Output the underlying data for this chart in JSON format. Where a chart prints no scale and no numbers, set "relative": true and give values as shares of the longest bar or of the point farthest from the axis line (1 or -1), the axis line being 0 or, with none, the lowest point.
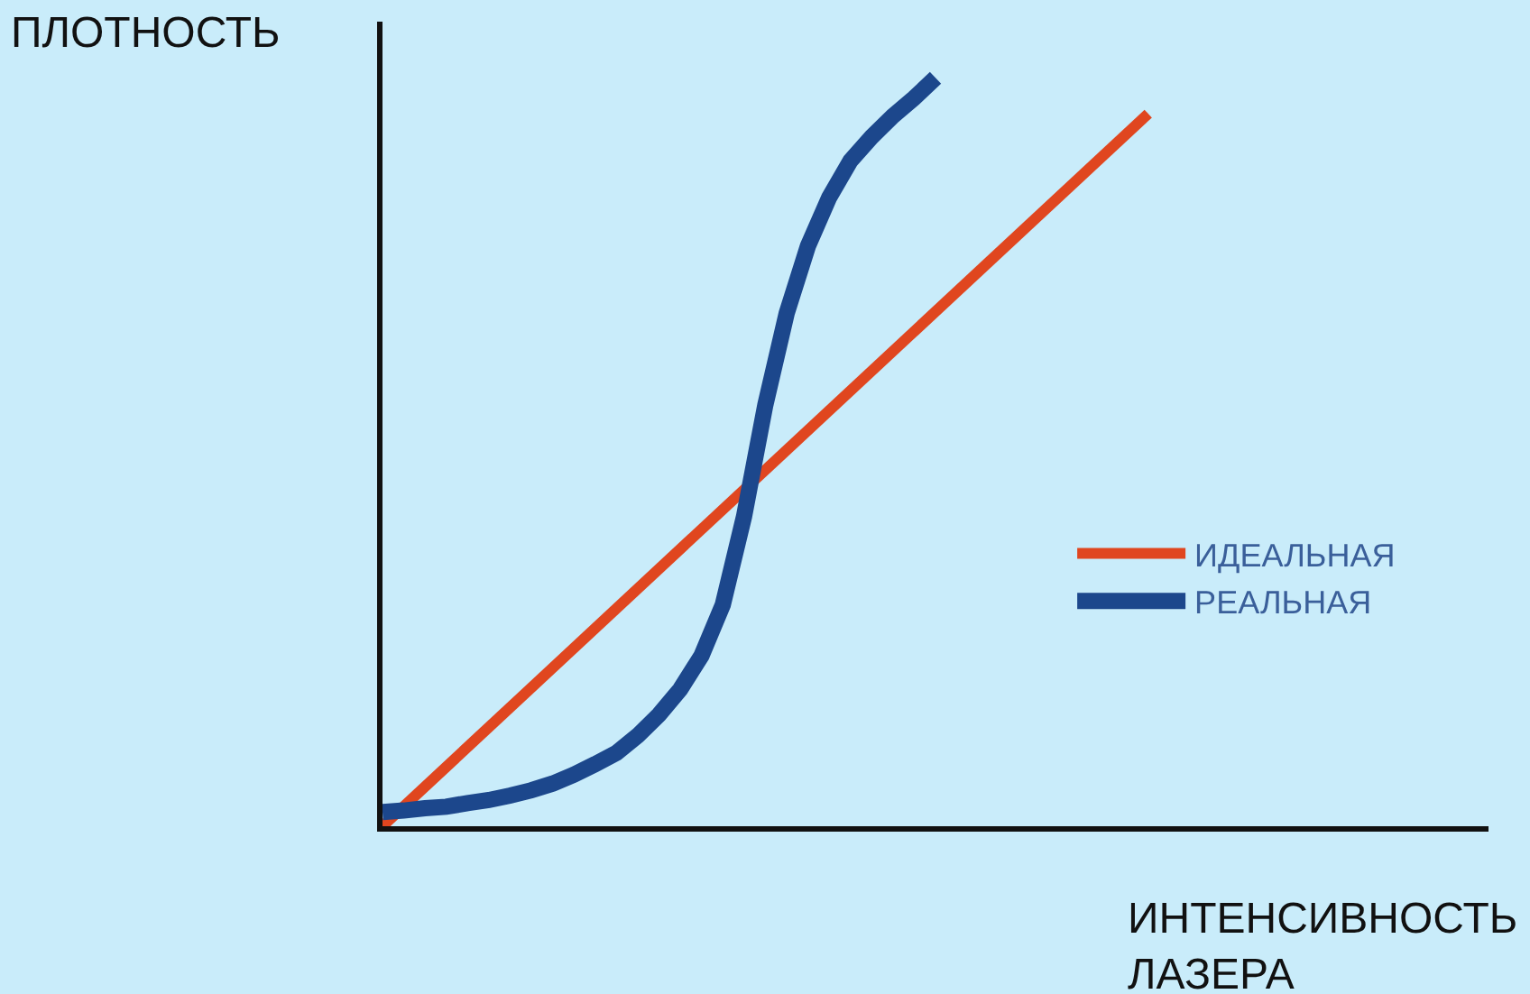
{
  "chart_data": {
    "type": "line",
    "relative": true,
    "xlabel": "ИНТЕНСИВНОСТЬ ЛАЗЕРА",
    "ylabel": "ПЛОТНОСТЬ",
    "legend": "right",
    "marker": "none",
    "line_style": "solid",
    "categories": [
      null,
      null,
      null,
      null,
      null,
      null,
      null,
      null,
      null,
      null,
      null,
      null,
      null,
      null,
      null,
      null,
      null,
      null,
      null,
      null,
      null,
      null,
      null,
      null,
      null,
      null,
      null,
      null,
      null,
      null,
      null,
      null,
      null,
      null,
      null,
      null,
      null,
      null,
      null,
      null,
      null,
      null,
      null,
      null,
      null,
      null,
      null,
      null,
      null,
      null,
      null,
      null,
      null
    ],
    "series": [
      {
        "name": "ИДЕАЛЬНАЯ",
        "color": "#e0461f",
        "values": [
          0,
          null,
          null,
          null,
          null,
          null,
          null,
          null,
          null,
          null,
          null,
          null,
          null,
          null,
          null,
          null,
          null,
          null,
          null,
          null,
          null,
          null,
          null,
          null,
          null,
          null,
          null,
          null,
          null,
          null,
          null,
          null,
          null,
          null,
          null,
          null,
          0.952,
          null,
          null,
          null,
          null,
          null,
          null,
          null,
          null,
          null,
          null,
          null,
          null,
          null,
          null,
          null,
          null
        ]
      },
      {
        "name": "РЕАЛЬНАЯ",
        "color": "#1c478c",
        "values": [
          0.019,
          0.021,
          0.024,
          0.026,
          0.031,
          0.035,
          0.041,
          0.048,
          0.057,
          0.069,
          0.083,
          0.098,
          0.121,
          0.149,
          0.183,
          0.228,
          0.296,
          0.414,
          0.563,
          0.685,
          0.775,
          0.84,
          0.889,
          0.921,
          0.949,
          0.973,
          1.0,
          null,
          null,
          null,
          null,
          null,
          null,
          null,
          null,
          null,
          null,
          null,
          null,
          null,
          null,
          null,
          null,
          null,
          null,
          null,
          null,
          null,
          null,
          null,
          null,
          null,
          null
        ]
      }
    ]
  }
}
